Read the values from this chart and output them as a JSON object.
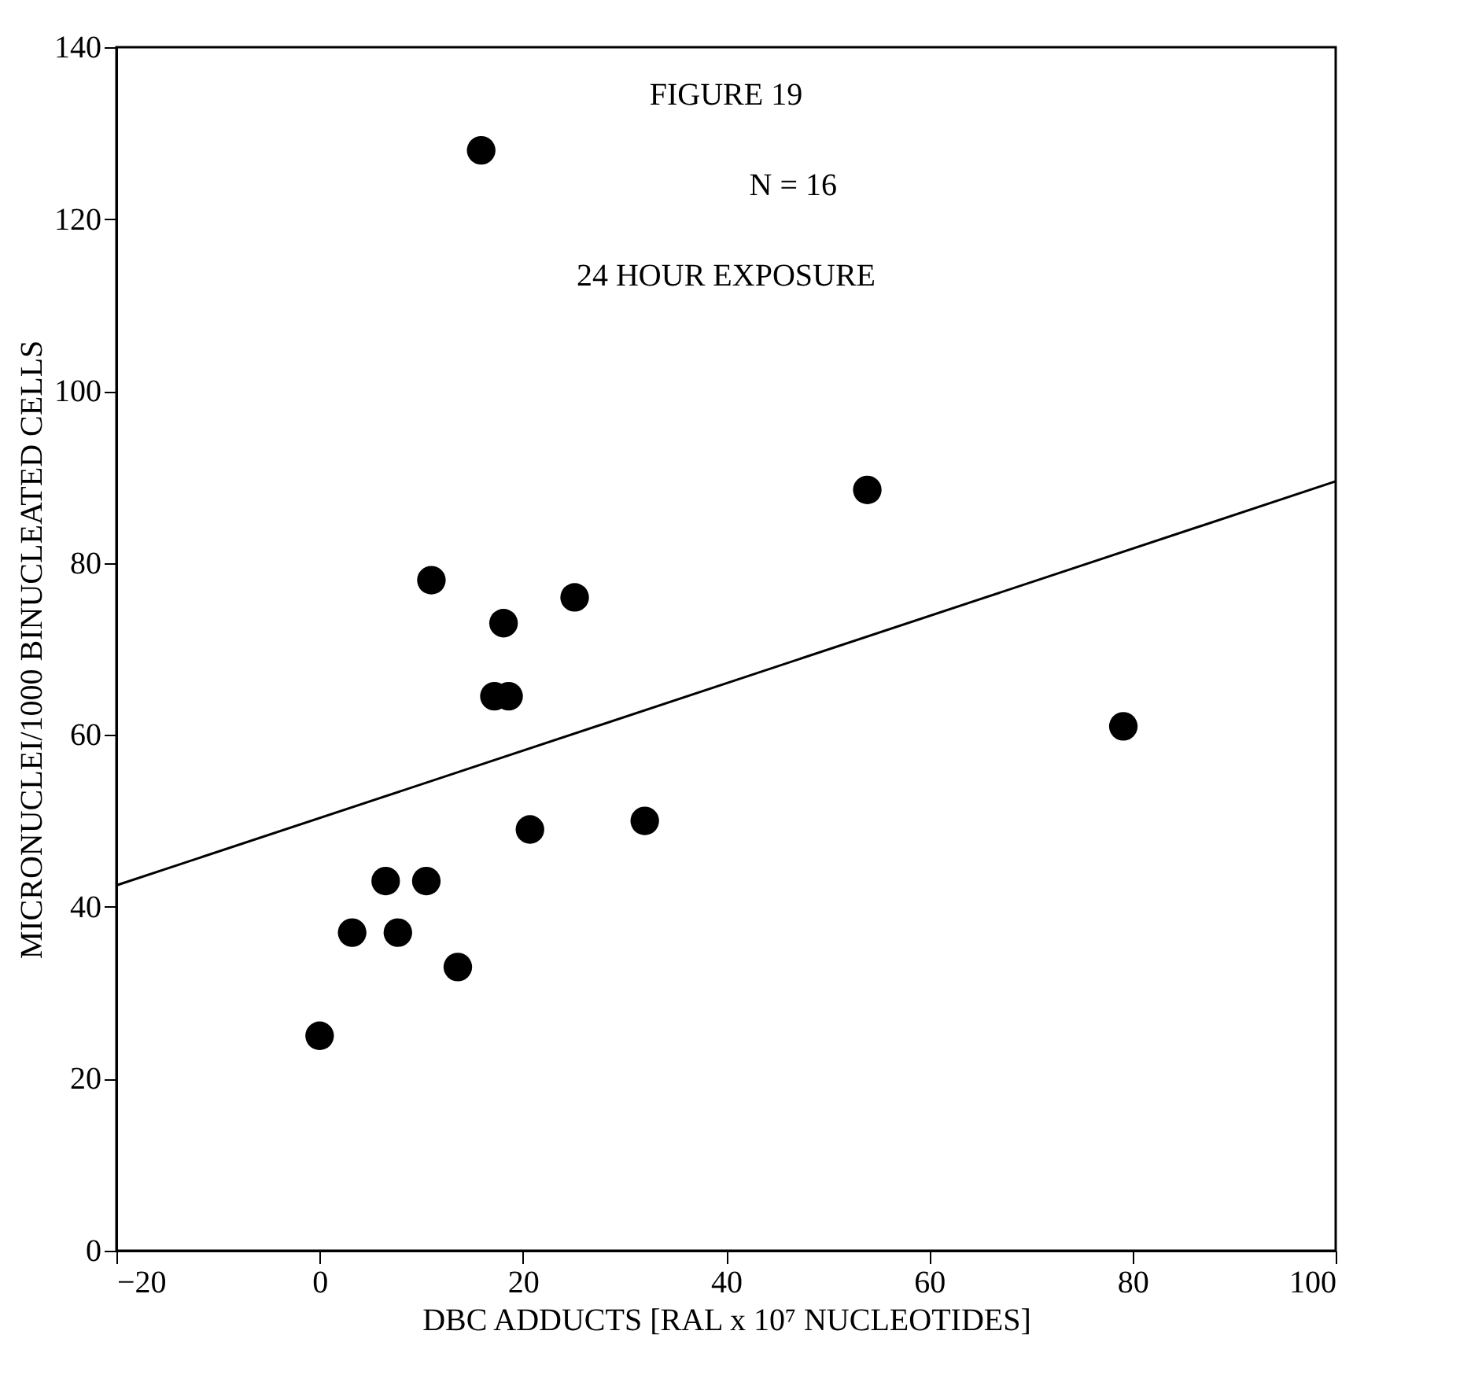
{
  "chart_data": {
    "type": "scatter",
    "xlabel": "DBC ADDUCTS [RAL x 10⁷ NUCLEOTIDES]",
    "ylabel": "MICRONUCLEI/1000 BINUCLEATED CELLS",
    "annotations": [
      "FIGURE 19",
      "N = 16",
      "24 HOUR EXPOSURE"
    ],
    "series": [
      {
        "marker": "circle",
        "color": "#000000",
        "x": [
          0,
          3.2,
          6.5,
          7.7,
          10.5,
          11,
          13.6,
          15.9,
          17.2,
          18.6,
          18.1,
          20.7,
          25.1,
          32,
          53.9,
          79.1
        ],
        "values": [
          25,
          37,
          43,
          37,
          43,
          78,
          33,
          128,
          64.5,
          64.5,
          73,
          49,
          76,
          50,
          88.5,
          61
        ]
      },
      {
        "type": "line",
        "line_style": "solid",
        "marker": "none",
        "color": "#000000",
        "x": [
          -20,
          100
        ],
        "values": [
          42.5,
          89.5
        ]
      }
    ],
    "xlim": [
      -20,
      100
    ],
    "xticks": [
      -20,
      0,
      20,
      40,
      60,
      80,
      100
    ],
    "ylim": [
      0,
      140
    ],
    "yticks": [
      0,
      20,
      40,
      60,
      80,
      100,
      120,
      140
    ],
    "grid": false
  }
}
